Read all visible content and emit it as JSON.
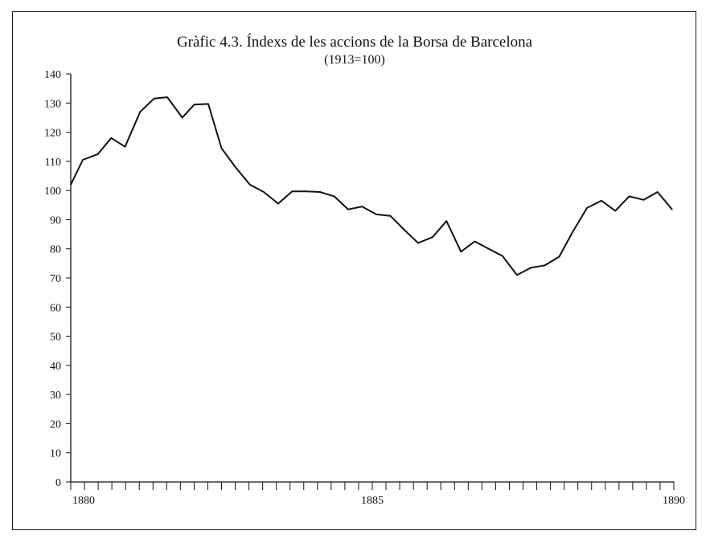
{
  "chart_data": {
    "type": "line",
    "title": "Gràfic 4.3. Índexs de les accions de la Borsa de Barcelona",
    "subtitle": "(1913=100)",
    "xlabel": "",
    "ylabel": "",
    "ylim": [
      0,
      140
    ],
    "xlim": [
      1880,
      1890
    ],
    "y_ticks": [
      "0",
      "10",
      "20",
      "30",
      "40",
      "50",
      "60",
      "70",
      "80",
      "90",
      "100",
      "110",
      "120",
      "130",
      "140"
    ],
    "x_tick_labels": [
      "1880",
      "1885",
      "1890"
    ],
    "grid": false,
    "series": [
      {
        "x": [
          1880,
          1880.2,
          1880.45,
          1880.67,
          1880.9,
          1881.15,
          1881.38,
          1881.6,
          1881.85,
          1882.05,
          1882.28,
          1882.5,
          1882.73,
          1882.97,
          1883.2,
          1883.44,
          1883.67,
          1883.9,
          1884.13,
          1884.37,
          1884.6,
          1884.83,
          1885.07,
          1885.3,
          1885.53,
          1885.76,
          1886.0,
          1886.23,
          1886.47,
          1886.7,
          1886.93,
          1887.16,
          1887.4,
          1887.63,
          1887.86,
          1888.1,
          1888.33,
          1888.56,
          1888.8,
          1889.03,
          1889.26,
          1889.5,
          1889.73,
          1889.97
        ],
        "values": [
          102,
          110.5,
          112.5,
          118,
          115,
          127,
          131.5,
          132,
          125,
          129.5,
          129.7,
          114.5,
          108,
          102,
          99.5,
          95.5,
          99.7,
          99.7,
          99.5,
          98,
          93.5,
          94.5,
          91.8,
          91.3,
          86.5,
          82,
          84,
          89.5,
          79,
          82.5,
          80,
          77.5,
          71,
          73.5,
          74.3,
          77.3,
          86,
          94,
          96.5,
          93,
          98,
          96.8,
          99.5,
          93.5
        ]
      }
    ],
    "colors": {
      "line": "#111111",
      "axis": "#111111"
    }
  }
}
